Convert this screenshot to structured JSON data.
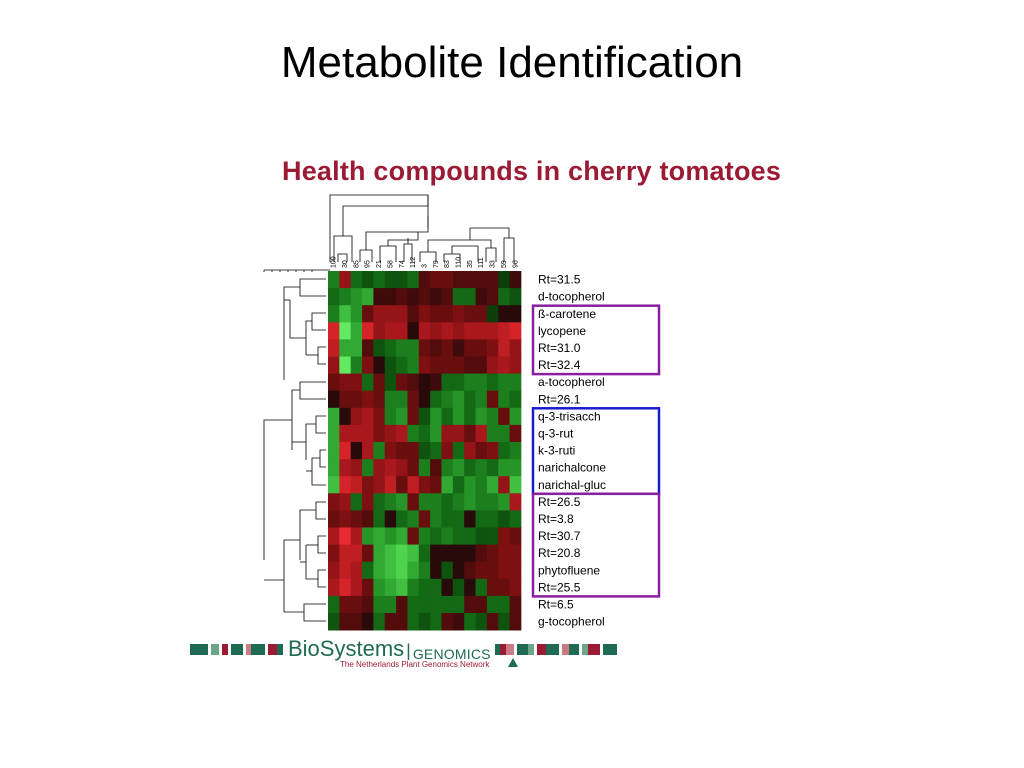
{
  "slide": {
    "title": "Metabolite Identification",
    "subtitle": "Health compounds in cherry tomatoes"
  },
  "footer": {
    "brand": "BioSystems",
    "separator": "|",
    "brand_sub": "GENOMICS",
    "tagline": "The Netherlands Plant Genomics Network",
    "bar_colors": [
      "#1f6a53",
      "#9b1b35",
      "#6aa68a",
      "#c97c84",
      "#ffffff"
    ]
  },
  "chart_data": {
    "type": "heatmap",
    "title": "Health compounds in cherry tomatoes",
    "columns": [
      "100",
      "30",
      "85",
      "95",
      "21",
      "58",
      "74",
      "112",
      "3",
      "79",
      "83",
      "110",
      "35",
      "111",
      "33",
      "59",
      "96"
    ],
    "rows": [
      "Rt=31.5",
      "d-tocopherol",
      "ß-carotene",
      "lycopene",
      "Rt=31.0",
      "Rt=32.4",
      "a-tocopherol",
      "Rt=26.1",
      "q-3-trisacch",
      "q-3-rut",
      "k-3-ruti",
      "narichalcone",
      "narichal-gluc",
      "Rt=26.5",
      "Rt=3.8",
      "Rt=30.7",
      "Rt=20.8",
      "phytofluene",
      "Rt=25.5",
      "Rt=6.5",
      "g-tocopherol"
    ],
    "values": [
      [
        -0.4,
        0.5,
        -0.3,
        -0.2,
        -0.3,
        -0.2,
        -0.2,
        -0.3,
        0.2,
        0.3,
        0.3,
        0.2,
        0.2,
        0.2,
        0.2,
        -0.1,
        0.1
      ],
      [
        -0.3,
        -0.4,
        -0.5,
        -0.6,
        0.1,
        0.1,
        0.2,
        0.1,
        0.2,
        0.1,
        0.2,
        -0.3,
        -0.3,
        0.1,
        0.2,
        -0.3,
        -0.2
      ],
      [
        -0.4,
        -0.7,
        -0.5,
        0.3,
        0.5,
        0.5,
        0.5,
        0.2,
        0.4,
        0.3,
        0.3,
        0.4,
        0.3,
        0.3,
        -0.1,
        0.0,
        0.0
      ],
      [
        0.8,
        -0.9,
        -0.6,
        0.8,
        0.5,
        0.6,
        0.6,
        0.0,
        0.6,
        0.5,
        0.6,
        0.5,
        0.6,
        0.6,
        0.6,
        0.7,
        0.8
      ],
      [
        0.7,
        -0.6,
        -0.6,
        0.2,
        -0.2,
        -0.3,
        -0.4,
        -0.4,
        0.3,
        0.2,
        0.3,
        0.1,
        0.3,
        0.3,
        0.4,
        0.7,
        0.5
      ],
      [
        0.5,
        -0.9,
        -0.4,
        0.4,
        0.0,
        -0.2,
        -0.3,
        -0.4,
        0.4,
        0.3,
        0.3,
        0.3,
        0.2,
        0.2,
        0.5,
        0.6,
        0.5
      ],
      [
        0.3,
        0.4,
        0.4,
        -0.3,
        0.3,
        -0.2,
        0.3,
        0.2,
        0.0,
        0.1,
        -0.3,
        -0.3,
        -0.4,
        -0.4,
        -0.3,
        -0.4,
        -0.4
      ],
      [
        0.0,
        0.3,
        0.3,
        0.4,
        0.3,
        -0.4,
        -0.4,
        0.3,
        0.0,
        -0.3,
        -0.4,
        -0.5,
        -0.3,
        -0.4,
        0.3,
        -0.4,
        -0.3
      ],
      [
        -0.6,
        0.0,
        0.5,
        0.6,
        0.4,
        -0.4,
        -0.5,
        0.3,
        -0.2,
        -0.5,
        -0.3,
        -0.5,
        -0.3,
        -0.5,
        -0.4,
        0.3,
        -0.5
      ],
      [
        -0.6,
        0.6,
        0.6,
        0.6,
        0.4,
        0.5,
        0.6,
        -0.4,
        -0.3,
        -0.5,
        0.5,
        0.5,
        0.3,
        0.6,
        -0.4,
        -0.4,
        0.3
      ],
      [
        -0.6,
        0.8,
        0.0,
        0.6,
        -0.4,
        0.4,
        0.3,
        0.3,
        -0.2,
        -0.3,
        0.4,
        -0.3,
        0.5,
        0.3,
        0.4,
        -0.3,
        -0.4
      ],
      [
        -0.6,
        0.6,
        0.5,
        -0.4,
        0.5,
        0.6,
        0.5,
        0.3,
        -0.4,
        0.2,
        -0.4,
        -0.5,
        -0.3,
        -0.4,
        -0.3,
        -0.5,
        -0.5
      ],
      [
        -0.7,
        0.8,
        0.7,
        0.4,
        0.5,
        0.7,
        0.3,
        0.7,
        0.4,
        0.3,
        -0.6,
        -0.3,
        -0.5,
        -0.4,
        -0.6,
        0.5,
        -0.7
      ],
      [
        0.4,
        0.5,
        -0.3,
        0.4,
        -0.3,
        -0.4,
        -0.5,
        0.3,
        -0.4,
        -0.4,
        -0.3,
        -0.4,
        -0.5,
        -0.4,
        -0.4,
        -0.5,
        0.6
      ],
      [
        0.3,
        0.4,
        0.3,
        0.2,
        -0.3,
        0.0,
        -0.3,
        -0.4,
        0.3,
        -0.4,
        -0.3,
        -0.3,
        0.0,
        -0.3,
        -0.3,
        -0.2,
        -0.3
      ],
      [
        0.6,
        0.9,
        0.6,
        -0.5,
        -0.6,
        -0.5,
        -0.6,
        0.3,
        -0.4,
        -0.3,
        -0.4,
        -0.3,
        -0.3,
        -0.2,
        -0.2,
        0.4,
        0.3
      ],
      [
        0.4,
        0.7,
        0.7,
        0.3,
        -0.6,
        -0.7,
        -0.8,
        -0.7,
        -0.3,
        0.0,
        0.0,
        0.0,
        0.0,
        0.2,
        0.3,
        0.4,
        0.4
      ],
      [
        0.5,
        0.7,
        0.6,
        -0.3,
        -0.6,
        -0.7,
        -0.8,
        -0.6,
        -0.4,
        0.0,
        -0.2,
        0.0,
        0.2,
        0.3,
        0.3,
        0.4,
        0.4
      ],
      [
        0.6,
        0.8,
        0.6,
        0.3,
        -0.5,
        -0.6,
        -0.7,
        -0.4,
        -0.3,
        -0.3,
        0.0,
        -0.2,
        0.0,
        -0.3,
        0.3,
        0.3,
        0.4
      ],
      [
        -0.3,
        0.3,
        0.3,
        0.2,
        -0.4,
        -0.4,
        0.2,
        -0.3,
        -0.3,
        -0.3,
        -0.3,
        -0.3,
        0.2,
        0.2,
        -0.3,
        -0.3,
        0.2
      ],
      [
        -0.2,
        0.2,
        0.2,
        0.0,
        -0.3,
        0.2,
        0.2,
        -0.3,
        -0.2,
        -0.3,
        0.2,
        0.1,
        -0.3,
        -0.2,
        0.2,
        -0.2,
        0.2
      ]
    ],
    "color_scale": {
      "high": "#ff3040",
      "low": "#40ff40",
      "mid": "#000000"
    },
    "highlight_groups": [
      {
        "rows": [
          "ß-carotene",
          "lycopene",
          "Rt=31.0",
          "Rt=32.4"
        ],
        "color": "#8a1fa0"
      },
      {
        "rows": [
          "q-3-trisacch",
          "q-3-rut",
          "k-3-ruti",
          "narichalcone",
          "narichal-gluc"
        ],
        "color": "#1a1ad0"
      },
      {
        "rows": [
          "Rt=26.5",
          "Rt=3.8",
          "Rt=30.7",
          "Rt=20.8",
          "phytofluene",
          "Rt=25.5"
        ],
        "color": "#8a1fa0"
      }
    ],
    "legend": "none",
    "grid": false
  }
}
